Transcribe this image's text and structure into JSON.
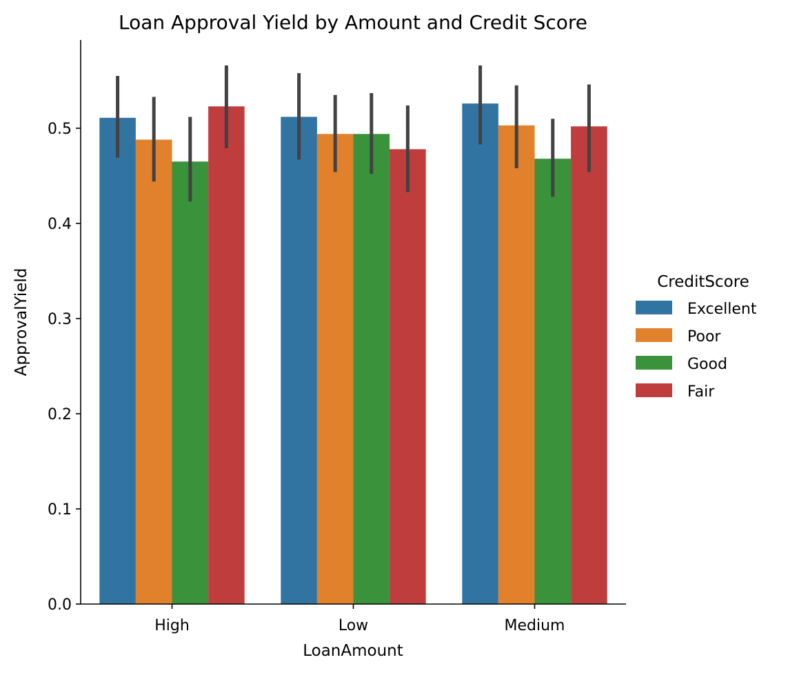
{
  "chart_data": {
    "type": "bar",
    "title": "Loan Approval Yield by Amount and Credit Score",
    "xlabel": "LoanAmount",
    "ylabel": "ApprovalYield",
    "ylim": [
      0,
      0.593
    ],
    "yticks": [
      "0.0",
      "0.1",
      "0.2",
      "0.3",
      "0.4",
      "0.5"
    ],
    "categories": [
      "High",
      "Low",
      "Medium"
    ],
    "legend": {
      "title": "CreditScore",
      "placement": "right"
    },
    "grid": false,
    "series": [
      {
        "name": "Excellent",
        "color": "#3274a1",
        "values": [
          0.511,
          0.512,
          0.526
        ],
        "ci": [
          [
            0.469,
            0.555
          ],
          [
            0.467,
            0.558
          ],
          [
            0.483,
            0.566
          ]
        ]
      },
      {
        "name": "Poor",
        "color": "#e1812c",
        "values": [
          0.488,
          0.494,
          0.503
        ],
        "ci": [
          [
            0.444,
            0.533
          ],
          [
            0.454,
            0.535
          ],
          [
            0.458,
            0.545
          ]
        ]
      },
      {
        "name": "Good",
        "color": "#3a923a",
        "values": [
          0.465,
          0.494,
          0.468
        ],
        "ci": [
          [
            0.423,
            0.512
          ],
          [
            0.452,
            0.537
          ],
          [
            0.428,
            0.51
          ]
        ]
      },
      {
        "name": "Fair",
        "color": "#c03d3e",
        "values": [
          0.523,
          0.478,
          0.502
        ],
        "ci": [
          [
            0.479,
            0.566
          ],
          [
            0.433,
            0.524
          ],
          [
            0.454,
            0.546
          ]
        ]
      }
    ]
  }
}
